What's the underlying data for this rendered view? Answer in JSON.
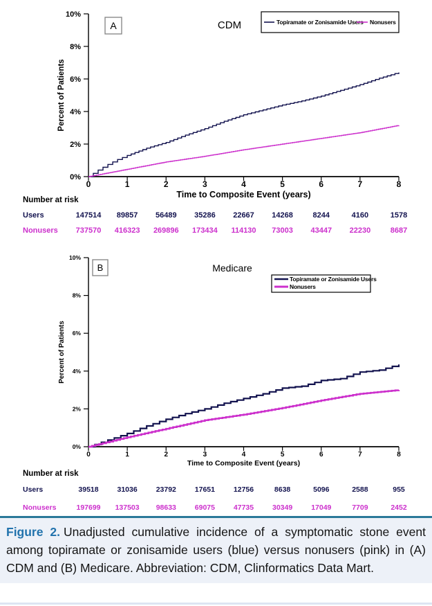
{
  "figure": {
    "label": "Figure 2.",
    "caption": "Unadjusted cumulative incidence of a symptomatic stone event among topiramate or zonisamide users (blue) versus nonusers (pink) in (A) CDM and (B) Medicare. Abbreviation: CDM, Clinformatics Data Mart.",
    "accent_color": "#2a7899",
    "label_color": "#2273ad",
    "background_color": "#edf1f8"
  },
  "colors": {
    "users": "#12124e",
    "nonusers": "#cc2fcc",
    "axis": "#000000",
    "panel_box_border": "#8a8a8a"
  },
  "chart_data": [
    {
      "type": "line",
      "panel_label": "A",
      "title": "CDM",
      "xlabel": "Time to Composite Event (years)",
      "ylabel": "Percent of Patients",
      "xlim": [
        0,
        8
      ],
      "ylim": [
        0,
        10
      ],
      "xticks": [
        "0",
        "1",
        "2",
        "3",
        "4",
        "5",
        "6",
        "7",
        "8"
      ],
      "xtick_values": [
        0,
        1,
        2,
        3,
        4,
        5,
        6,
        7,
        8
      ],
      "ytick_labels": [
        "0%",
        "2%",
        "4%",
        "6%",
        "8%",
        "10%"
      ],
      "ytick_values": [
        0,
        2,
        4,
        6,
        8,
        10
      ],
      "legend": {
        "layout": "horizontal",
        "entries": [
          {
            "name": "Topiramate or Zonisamide Users",
            "color_key": "users"
          },
          {
            "name": "Nonusers",
            "color_key": "nonusers"
          }
        ]
      },
      "series": [
        {
          "name": "Topiramate or Zonisamide Users",
          "color_key": "users",
          "x": [
            0,
            0.25,
            0.5,
            0.75,
            1,
            1.5,
            2,
            2.5,
            3,
            3.5,
            4,
            4.5,
            5,
            5.5,
            6,
            6.5,
            7,
            7.5,
            8
          ],
          "y": [
            0,
            0.4,
            0.75,
            1.05,
            1.3,
            1.75,
            2.1,
            2.55,
            2.95,
            3.4,
            3.8,
            4.1,
            4.4,
            4.65,
            4.95,
            5.3,
            5.65,
            6.05,
            6.4
          ]
        },
        {
          "name": "Nonusers",
          "color_key": "nonusers",
          "x": [
            0,
            1,
            2,
            3,
            4,
            5,
            6,
            7,
            8
          ],
          "y": [
            0,
            0.45,
            0.9,
            1.25,
            1.65,
            2.0,
            2.35,
            2.7,
            3.15
          ]
        }
      ],
      "number_at_risk": {
        "heading": "Number at risk",
        "rows": [
          {
            "label": "Users",
            "color_key": "users",
            "values": [
              "147514",
              "89857",
              "56489",
              "35286",
              "22667",
              "14268",
              "8244",
              "4160",
              "1578"
            ]
          },
          {
            "label": "Nonusers",
            "color_key": "nonusers",
            "values": [
              "737570",
              "416323",
              "269896",
              "173434",
              "114130",
              "73003",
              "43447",
              "22230",
              "8687"
            ]
          }
        ]
      }
    },
    {
      "type": "line",
      "panel_label": "B",
      "title": "Medicare",
      "xlabel": "Time to Composite Event (years)",
      "ylabel": "Percent of Patients",
      "xlim": [
        0,
        8
      ],
      "ylim": [
        0,
        10
      ],
      "xticks": [
        "0",
        "1",
        "2",
        "3",
        "4",
        "5",
        "6",
        "7",
        "8"
      ],
      "xtick_values": [
        0,
        1,
        2,
        3,
        4,
        5,
        6,
        7,
        8
      ],
      "ytick_labels": [
        "0%",
        "2%",
        "4%",
        "6%",
        "8%",
        "10%"
      ],
      "ytick_values": [
        0,
        2,
        4,
        6,
        8,
        10
      ],
      "legend": {
        "layout": "vertical",
        "entries": [
          {
            "name": "Topiramate or Zonisamide Users",
            "color_key": "users"
          },
          {
            "name": "Nonusers",
            "color_key": "nonusers"
          }
        ]
      },
      "series": [
        {
          "name": "Topiramate or Zonisamide Users",
          "color_key": "users",
          "x": [
            0,
            0.5,
            1,
            1.5,
            2,
            2.5,
            3,
            3.5,
            4,
            4.5,
            5,
            5.5,
            6,
            6.5,
            7,
            7.5,
            8
          ],
          "y": [
            0,
            0.35,
            0.7,
            1.1,
            1.45,
            1.75,
            2.0,
            2.3,
            2.55,
            2.8,
            3.1,
            3.2,
            3.5,
            3.6,
            3.95,
            4.05,
            4.35
          ]
        },
        {
          "name": "Nonusers",
          "color_key": "nonusers",
          "x": [
            0,
            1,
            2,
            3,
            4,
            5,
            6,
            7,
            8
          ],
          "y": [
            0,
            0.5,
            0.95,
            1.4,
            1.7,
            2.05,
            2.45,
            2.8,
            3.0
          ]
        }
      ],
      "number_at_risk": {
        "heading": "Number at risk",
        "rows": [
          {
            "label": "Users",
            "color_key": "users",
            "values": [
              "39518",
              "31036",
              "23792",
              "17651",
              "12756",
              "8638",
              "5096",
              "2588",
              "955"
            ]
          },
          {
            "label": "Nonusers",
            "color_key": "nonusers",
            "values": [
              "197699",
              "137503",
              "98633",
              "69075",
              "47735",
              "30349",
              "17049",
              "7709",
              "2452"
            ]
          }
        ]
      }
    }
  ]
}
